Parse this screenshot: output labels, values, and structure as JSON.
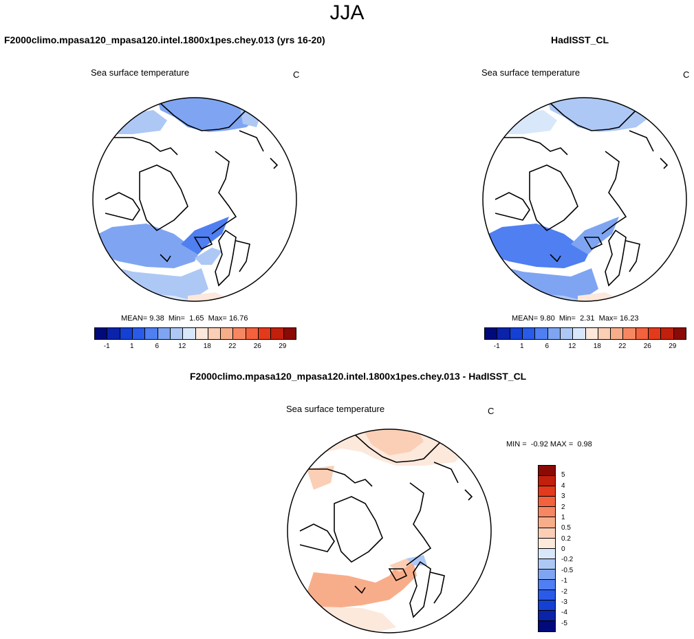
{
  "season": "JJA",
  "panels": [
    {
      "title": "F2000climo.mpasa120_mpasa120.intel.1800x1pes.chey.013 (yrs 16-20)",
      "variable": "Sea surface temperature",
      "units": "C",
      "mean_label": "MEAN=",
      "mean": "9.38",
      "min_label": "Min=",
      "min": "1.65",
      "max_label": "Max=",
      "max": "16.76"
    },
    {
      "title": "HadISST_CL",
      "variable": "Sea surface temperature",
      "units": "C",
      "mean_label": "MEAN=",
      "mean": "9.80",
      "min_label": "Min=",
      "min": "2.31",
      "max_label": "Max=",
      "max": "16.23"
    },
    {
      "title": "F2000climo.mpasa120_mpasa120.intel.1800x1pes.chey.013 - HadISST_CL",
      "variable": "Sea surface temperature",
      "units": "C",
      "min_label": "MIN =",
      "min": "-0.92",
      "max_label": "MAX =",
      "max": "0.98"
    }
  ],
  "colorbar_abs": {
    "colors": [
      "#000a7a",
      "#0a23a8",
      "#1440d4",
      "#2a5ae8",
      "#4f7ff0",
      "#7fa5f2",
      "#adc8f5",
      "#d9e7fa",
      "#fde8dc",
      "#fbcfb6",
      "#f8ad8a",
      "#f68762",
      "#f3613d",
      "#e33a1c",
      "#c1200d",
      "#8a0a06"
    ],
    "ticks": [
      "-1",
      "1",
      "6",
      "12",
      "18",
      "22",
      "26",
      "29"
    ]
  },
  "colorbar_diff": {
    "colors": [
      "#8a0a06",
      "#c1200d",
      "#e33a1c",
      "#f3613d",
      "#f68762",
      "#f8ad8a",
      "#fbcfb6",
      "#fde8dc",
      "#d9e7fa",
      "#adc8f5",
      "#7fa5f2",
      "#4f7ff0",
      "#2a5ae8",
      "#1440d4",
      "#0a23a8",
      "#000a7a"
    ],
    "ticks": [
      "5",
      "4",
      "3",
      "2",
      "1",
      "0.5",
      "0.2",
      "0",
      "-0.2",
      "-0.5",
      "-1",
      "-2",
      "-3",
      "-4",
      "-5"
    ]
  }
}
